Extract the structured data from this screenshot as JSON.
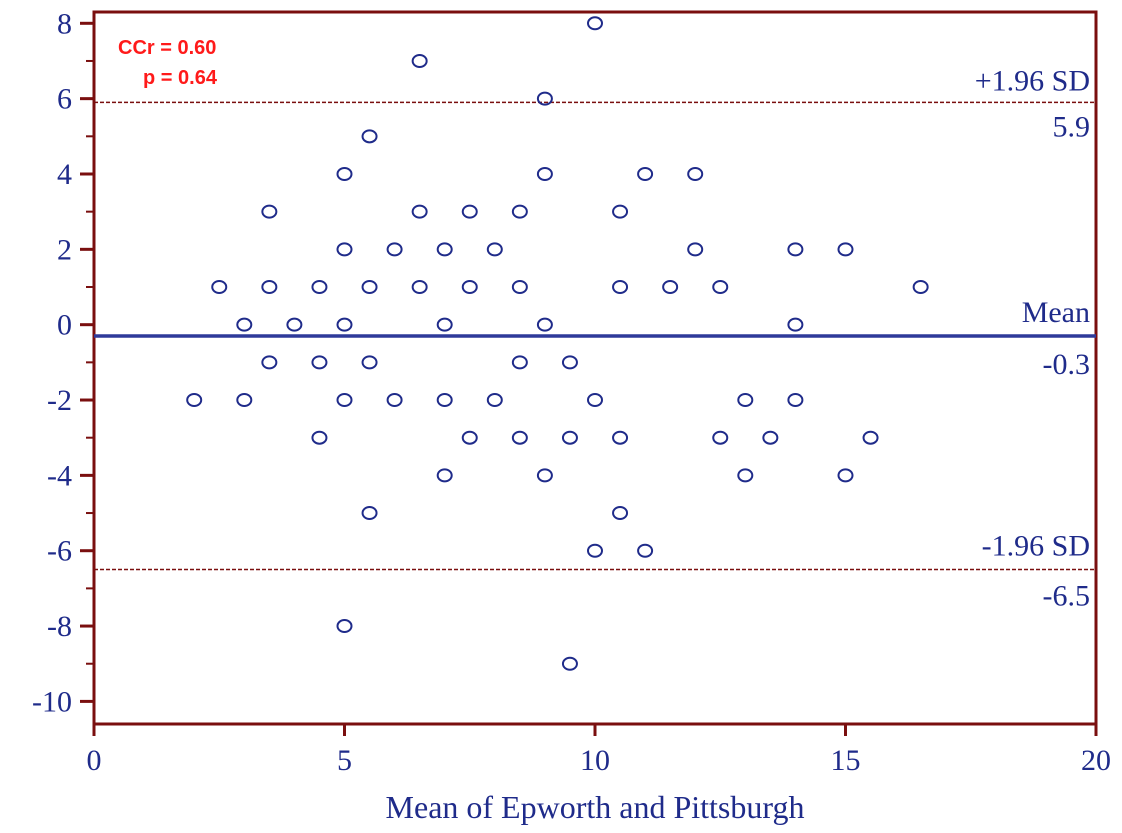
{
  "colors": {
    "frame": "#7a0f0f",
    "text": "#1f2b8a",
    "points": "#1f2b8a",
    "mean_line": "#2e3a9a",
    "sd_line": "#7a0f0f",
    "annotation": "#ff1a1a"
  },
  "chart_data": {
    "type": "scatter",
    "title": "",
    "xlabel": "Mean of Epworth and Pittsburgh",
    "ylabel": "",
    "xlim": [
      0,
      20
    ],
    "ylim": [
      -10.6,
      8.3
    ],
    "x_ticks": [
      0,
      5,
      10,
      15,
      20
    ],
    "y_ticks": [
      8,
      6,
      4,
      2,
      0,
      -2,
      -4,
      -6,
      -8,
      -10
    ],
    "grid": false,
    "annotation": {
      "line1": "CCr = 0.60",
      "line2": "p = 0.64"
    },
    "reference_lines": {
      "upper": {
        "label": "+1.96 SD",
        "value": 5.9,
        "value_text": "5.9"
      },
      "mean": {
        "label": "Mean",
        "value": -0.3,
        "value_text": "-0.3"
      },
      "lower": {
        "label": "-1.96 SD",
        "value": -6.5,
        "value_text": "-6.5"
      }
    },
    "points": [
      {
        "x": 10,
        "y": 8
      },
      {
        "x": 6.5,
        "y": 7
      },
      {
        "x": 9,
        "y": 6
      },
      {
        "x": 5.5,
        "y": 5
      },
      {
        "x": 5,
        "y": 4
      },
      {
        "x": 9,
        "y": 4
      },
      {
        "x": 11,
        "y": 4
      },
      {
        "x": 12,
        "y": 4
      },
      {
        "x": 3.5,
        "y": 3
      },
      {
        "x": 6.5,
        "y": 3
      },
      {
        "x": 7.5,
        "y": 3
      },
      {
        "x": 8.5,
        "y": 3
      },
      {
        "x": 10.5,
        "y": 3
      },
      {
        "x": 5,
        "y": 2
      },
      {
        "x": 6,
        "y": 2
      },
      {
        "x": 7,
        "y": 2
      },
      {
        "x": 8,
        "y": 2
      },
      {
        "x": 12,
        "y": 2
      },
      {
        "x": 14,
        "y": 2
      },
      {
        "x": 15,
        "y": 2
      },
      {
        "x": 2.5,
        "y": 1
      },
      {
        "x": 3.5,
        "y": 1
      },
      {
        "x": 4.5,
        "y": 1
      },
      {
        "x": 5.5,
        "y": 1
      },
      {
        "x": 6.5,
        "y": 1
      },
      {
        "x": 7.5,
        "y": 1
      },
      {
        "x": 8.5,
        "y": 1
      },
      {
        "x": 10.5,
        "y": 1
      },
      {
        "x": 11.5,
        "y": 1
      },
      {
        "x": 12.5,
        "y": 1
      },
      {
        "x": 16.5,
        "y": 1
      },
      {
        "x": 3,
        "y": 0
      },
      {
        "x": 4,
        "y": 0
      },
      {
        "x": 5,
        "y": 0
      },
      {
        "x": 7,
        "y": 0
      },
      {
        "x": 9,
        "y": 0
      },
      {
        "x": 14,
        "y": 0
      },
      {
        "x": 3.5,
        "y": -1
      },
      {
        "x": 4.5,
        "y": -1
      },
      {
        "x": 5.5,
        "y": -1
      },
      {
        "x": 8.5,
        "y": -1
      },
      {
        "x": 9.5,
        "y": -1
      },
      {
        "x": 2,
        "y": -2
      },
      {
        "x": 3,
        "y": -2
      },
      {
        "x": 5,
        "y": -2
      },
      {
        "x": 6,
        "y": -2
      },
      {
        "x": 7,
        "y": -2
      },
      {
        "x": 8,
        "y": -2
      },
      {
        "x": 10,
        "y": -2
      },
      {
        "x": 13,
        "y": -2
      },
      {
        "x": 14,
        "y": -2
      },
      {
        "x": 4.5,
        "y": -3
      },
      {
        "x": 7.5,
        "y": -3
      },
      {
        "x": 8.5,
        "y": -3
      },
      {
        "x": 9.5,
        "y": -3
      },
      {
        "x": 10.5,
        "y": -3
      },
      {
        "x": 12.5,
        "y": -3
      },
      {
        "x": 13.5,
        "y": -3
      },
      {
        "x": 15.5,
        "y": -3
      },
      {
        "x": 7,
        "y": -4
      },
      {
        "x": 9,
        "y": -4
      },
      {
        "x": 13,
        "y": -4
      },
      {
        "x": 15,
        "y": -4
      },
      {
        "x": 5.5,
        "y": -5
      },
      {
        "x": 10.5,
        "y": -5
      },
      {
        "x": 10,
        "y": -6
      },
      {
        "x": 11,
        "y": -6
      },
      {
        "x": 5,
        "y": -8
      },
      {
        "x": 9.5,
        "y": -9
      }
    ]
  }
}
